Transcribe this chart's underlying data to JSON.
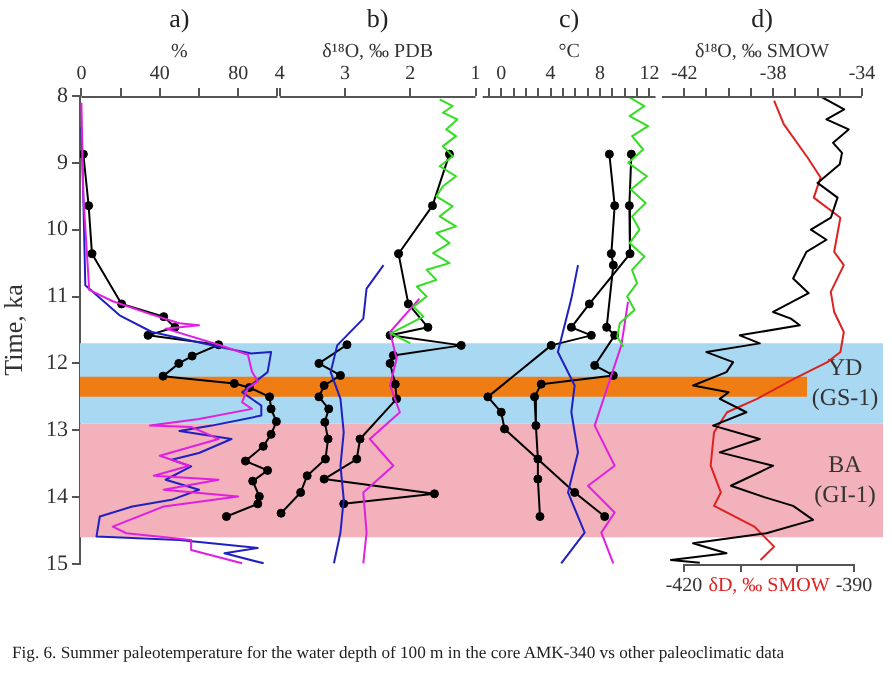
{
  "chart_data": [
    {
      "type": "line",
      "title": "a)",
      "xlabel": "%",
      "ylabel": "Time, ka",
      "xlim": [
        0,
        100
      ],
      "xticks": [
        0,
        {
          "value": 20,
          "label": null
        },
        40,
        {
          "value": 60,
          "label": null
        },
        80,
        {
          "value": 100,
          "label": null
        }
      ],
      "ylim": [
        15,
        8
      ],
      "yticks": [
        8,
        9,
        10,
        11,
        12,
        13,
        14,
        15
      ],
      "bands": [
        {
          "axis": "y",
          "from": 11.7,
          "to": 12.9,
          "label": "YD (GS-1)",
          "color": "#a9d9f2"
        },
        {
          "axis": "y",
          "from": 12.9,
          "to": 14.6,
          "label": "BA (GI-1)",
          "color": "#f2b1bb"
        },
        {
          "axis": "y",
          "from": 12.2,
          "to": 12.5,
          "color": "#f07d14"
        }
      ],
      "annotations": [
        "Fig. 6. Summer paleotemperature for the water depth of 100 m in the core AMK-340 vs other paleoclimatic data"
      ],
      "series": [
        {
          "color": "#e020e0",
          "marker": "none",
          "x": [
            0,
            1,
            4,
            16,
            36,
            50,
            60,
            43,
            70,
            85,
            87,
            90,
            85,
            82,
            87,
            60,
            35,
            56,
            70,
            40,
            55,
            37,
            70,
            42,
            80,
            42,
            16,
            23,
            56,
            56,
            82
          ],
          "values": [
            8.1,
            9.5,
            10.9,
            11.07,
            11.27,
            11.4,
            11.43,
            11.48,
            11.72,
            11.87,
            12.12,
            12.27,
            12.37,
            12.58,
            12.68,
            12.83,
            12.93,
            12.95,
            13.13,
            13.38,
            13.53,
            13.68,
            13.74,
            13.89,
            13.99,
            14.14,
            14.44,
            14.54,
            14.64,
            14.79,
            14.99
          ]
        },
        {
          "color": "#2020c0",
          "marker": "none",
          "x": [
            0,
            1,
            2,
            19.5,
            36,
            70,
            86.7,
            96.8,
            95,
            82,
            91.8,
            91.8,
            66.5,
            50,
            76.6,
            60,
            46,
            56,
            43,
            60,
            46,
            26,
            9.4,
            7.7,
            50,
            90,
            73,
            93
          ],
          "values": [
            8.47,
            9.52,
            10.83,
            11.28,
            11.53,
            11.75,
            11.85,
            11.83,
            12.13,
            12.43,
            12.63,
            12.78,
            12.93,
            13.01,
            13.13,
            13.34,
            13.44,
            13.54,
            13.74,
            13.89,
            14.04,
            14.14,
            14.29,
            14.59,
            14.64,
            14.76,
            14.84,
            14.99
          ]
        },
        {
          "color": "#000000",
          "marker": "circle",
          "x": [
            1,
            3.7,
            5.4,
            20.5,
            42,
            47.7,
            34,
            70,
            56.5,
            49.7,
            41.7,
            78,
            85.7,
            96,
            96.8,
            99.5,
            96.8,
            92.8,
            83.7,
            95,
            87.4,
            90.8,
            90,
            74
          ],
          "values": [
            8.87,
            9.64,
            10.36,
            11.11,
            11.3,
            11.46,
            11.58,
            11.72,
            11.89,
            12.0,
            12.19,
            12.3,
            12.36,
            12.5,
            12.68,
            12.87,
            13.06,
            13.24,
            13.46,
            13.6,
            13.76,
            13.99,
            14.1,
            14.29
          ]
        }
      ]
    },
    {
      "type": "line",
      "title": "b)",
      "xlabel": "δ¹⁸O, ‰ PDB",
      "xlim": [
        4,
        1
      ],
      "xticks": [
        4,
        3,
        2,
        1
      ],
      "ylim": [
        15,
        8
      ],
      "yticks": [
        8,
        9,
        10,
        11,
        12,
        13,
        14,
        15
      ],
      "tick_labels": "x",
      "series": [
        {
          "color": "#33dd22",
          "marker": "none",
          "x": [
            1.55,
            1.35,
            1.5,
            1.28,
            1.45,
            1.3,
            1.5,
            1.35,
            1.55,
            1.3,
            1.5,
            1.6,
            1.35,
            1.55,
            1.3,
            1.6,
            1.4,
            1.65,
            1.4,
            1.75,
            1.6,
            1.9,
            1.75,
            1.95,
            1.8,
            2.1,
            2.3,
            2.0
          ],
          "values": [
            8.05,
            8.15,
            8.25,
            8.35,
            8.5,
            8.6,
            8.75,
            8.9,
            9.05,
            9.2,
            9.35,
            9.5,
            9.65,
            9.8,
            9.95,
            10.05,
            10.2,
            10.35,
            10.5,
            10.6,
            10.75,
            10.85,
            11.0,
            11.15,
            11.3,
            11.45,
            11.55,
            11.7
          ]
        },
        {
          "color": "#2020c0",
          "marker": "none",
          "x": [
            2.41,
            2.67,
            2.72,
            3.12,
            3.22,
            3.07,
            3.02,
            3.07,
            3.02,
            3.07,
            3.17
          ],
          "values": [
            10.53,
            10.88,
            11.33,
            11.73,
            12.13,
            12.53,
            13.03,
            13.53,
            14.03,
            14.53,
            14.99
          ]
        },
        {
          "color": "#e020e0",
          "marker": "none",
          "x": [
            1.86,
            2.31,
            2.21,
            2.31,
            2.16,
            2.62,
            2.26,
            2.72,
            2.67,
            2.72
          ],
          "values": [
            11.03,
            11.53,
            11.93,
            12.33,
            12.73,
            13.13,
            13.53,
            13.93,
            14.53,
            14.99
          ]
        },
        {
          "color": "#000000",
          "marker": "circle",
          "x": [
            1.4,
            1.66,
            2.18,
            2.03,
            1.73,
            2.31,
            1.22,
            2.26,
            2.31,
            2.23,
            2.21,
            2.77,
            2.82,
            3.32,
            1.63,
            3.02
          ],
          "values": [
            8.87,
            9.64,
            10.36,
            11.11,
            11.46,
            11.58,
            11.73,
            11.88,
            12.0,
            12.31,
            12.53,
            13.13,
            13.43,
            13.73,
            13.95,
            14.1
          ]
        },
        {
          "color": "#000000",
          "marker": "circle",
          "x": [
            2.97,
            3.4,
            3.07,
            3.32,
            3.4,
            3.25,
            3.31,
            3.26,
            3.3,
            3.58,
            3.68,
            3.98
          ],
          "values": [
            11.72,
            12.0,
            12.18,
            12.33,
            12.5,
            12.68,
            12.88,
            13.13,
            13.43,
            13.68,
            13.93,
            14.24
          ]
        }
      ]
    },
    {
      "type": "line",
      "title": "c)",
      "xlabel": "°C",
      "xlim": [
        -1.5,
        12.5
      ],
      "xticks": [
        {
          "value": -1,
          "label": null
        },
        0,
        {
          "value": 1,
          "label": null
        },
        {
          "value": 2,
          "label": null
        },
        {
          "value": 3,
          "label": null
        },
        4,
        {
          "value": 5,
          "label": null
        },
        {
          "value": 6,
          "label": null
        },
        {
          "value": 7,
          "label": null
        },
        8,
        {
          "value": 9,
          "label": null
        },
        {
          "value": 10,
          "label": null
        },
        {
          "value": 11,
          "label": null
        },
        12
      ],
      "ylim": [
        15,
        8
      ],
      "yticks": [
        8,
        9,
        10,
        11,
        12,
        13,
        14,
        15
      ],
      "tick_labels": "x",
      "series": [
        {
          "color": "#33dd22",
          "marker": "none",
          "x": [
            10.2,
            11.6,
            10.4,
            11.9,
            10.6,
            11.5,
            10.3,
            11.8,
            10.5,
            11.7,
            10.6,
            11.2,
            10.4,
            11.6,
            10.6,
            11.0,
            10.2,
            10.8,
            9.6,
            9.4,
            9.9
          ],
          "values": [
            8.0,
            8.15,
            8.3,
            8.45,
            8.6,
            8.8,
            9.0,
            9.2,
            9.4,
            9.6,
            9.8,
            10.0,
            10.2,
            10.4,
            10.6,
            10.8,
            11.0,
            11.2,
            11.4,
            11.6,
            11.75
          ]
        },
        {
          "color": "#2020c0",
          "marker": "none",
          "x": [
            6.22,
            5.68,
            4.59,
            5.95,
            5.68,
            6.22,
            5.41,
            6.76,
            4.86
          ],
          "values": [
            10.53,
            11.03,
            11.83,
            12.33,
            12.73,
            13.33,
            13.93,
            14.53,
            14.99
          ]
        },
        {
          "color": "#e020e0",
          "marker": "none",
          "x": [
            10.27,
            9.73,
            8.65,
            7.57,
            9.19,
            7.03,
            9.19,
            8.11,
            9.08
          ],
          "values": [
            11.08,
            11.73,
            12.33,
            12.93,
            13.53,
            13.83,
            14.23,
            14.53,
            14.99
          ]
        },
        {
          "color": "#000000",
          "marker": "circle",
          "x": [
            8.76,
            9.19,
            8.92,
            9.08,
            8.54,
            9.19,
            7.57,
            9.08,
            3.24,
            2.7,
            2.81,
            2.97,
            2.97,
            3.14
          ],
          "values": [
            8.87,
            9.64,
            10.36,
            10.53,
            11.46,
            11.58,
            12.03,
            12.18,
            12.31,
            12.5,
            12.93,
            13.43,
            13.73,
            14.29
          ]
        },
        {
          "color": "#000000",
          "marker": "circle",
          "x": [
            10.54,
            10.38,
            10.43,
            7.14,
            5.68,
            7.3,
            4.05,
            -1.08,
            0,
            0.27,
            5.95,
            8.38
          ],
          "values": [
            8.87,
            9.64,
            10.36,
            11.11,
            11.46,
            11.58,
            11.73,
            12.5,
            12.73,
            12.98,
            13.93,
            14.29
          ]
        }
      ]
    },
    {
      "type": "line",
      "title": "d)",
      "xlabel": "δD, ‰ SMOW",
      "x2label": "δ¹⁸O, ‰ SMOW",
      "xlim": [
        -420,
        -390
      ],
      "xticks": [
        -420,
        {
          "value": -410,
          "label": null
        },
        {
          "value": -400,
          "label": null
        },
        -390
      ],
      "x2lim": [
        -43,
        -34
      ],
      "x2ticks": [
        -42,
        {
          "value": -41,
          "label": null
        },
        {
          "value": -40,
          "label": null
        },
        {
          "value": -39,
          "label": null
        },
        -38,
        {
          "value": -37,
          "label": null
        },
        {
          "value": -36,
          "label": null
        },
        {
          "value": -35,
          "label": null
        },
        -34
      ],
      "ylim": [
        15,
        8
      ],
      "yticks": [
        8,
        9,
        10,
        11,
        12,
        13,
        14,
        15
      ],
      "tick_labels": "x",
      "series": [
        {
          "color": "#000000",
          "marker": "none",
          "axis": "x2",
          "x": [
            -35.9,
            -34.8,
            -35.6,
            -34.6,
            -35.3,
            -34.9,
            -35.0,
            -36.0,
            -35.1,
            -35.4,
            -36.3,
            -35.6,
            -36.5,
            -37.1,
            -36.4,
            -38.0,
            -37.2,
            -36.8,
            -39.5,
            -38.6,
            -41.0,
            -39.8,
            -40.1,
            -41.6,
            -40.0,
            -40.4,
            -39.2,
            -40.7,
            -38.6,
            -40.4,
            -38.0,
            -39.9,
            -38.4,
            -37.1,
            -36.2,
            -38.3,
            -41.6,
            -40.1,
            -42.6,
            -41.3
          ],
          "values": [
            8.0,
            8.2,
            8.35,
            8.5,
            8.7,
            8.85,
            9.02,
            9.3,
            9.52,
            9.82,
            10.0,
            10.15,
            10.33,
            10.73,
            10.95,
            11.23,
            11.33,
            11.43,
            11.58,
            11.7,
            11.83,
            11.98,
            12.13,
            12.33,
            12.43,
            12.53,
            12.73,
            12.93,
            13.13,
            13.33,
            13.53,
            13.83,
            14.0,
            14.13,
            14.34,
            14.54,
            14.69,
            14.84,
            14.94,
            14.98
          ]
        },
        {
          "color": "#dd2222",
          "marker": "none",
          "x": [
            -404.1,
            -402.4,
            -398.2,
            -395.9,
            -397.1,
            -392.4,
            -393.5,
            -391.8,
            -394.1,
            -393.5,
            -391.8,
            -392.4,
            -394.7,
            -400.6,
            -407.1,
            -412.4,
            -414.7,
            -415.3,
            -413.5,
            -414.7,
            -407.6,
            -404.1,
            -406.5
          ],
          "values": [
            8.07,
            8.42,
            8.92,
            9.22,
            9.52,
            9.82,
            10.33,
            10.53,
            10.93,
            11.23,
            11.53,
            11.83,
            11.98,
            12.23,
            12.53,
            12.73,
            13.03,
            13.53,
            13.93,
            14.13,
            14.44,
            14.74,
            14.94
          ]
        }
      ]
    }
  ]
}
